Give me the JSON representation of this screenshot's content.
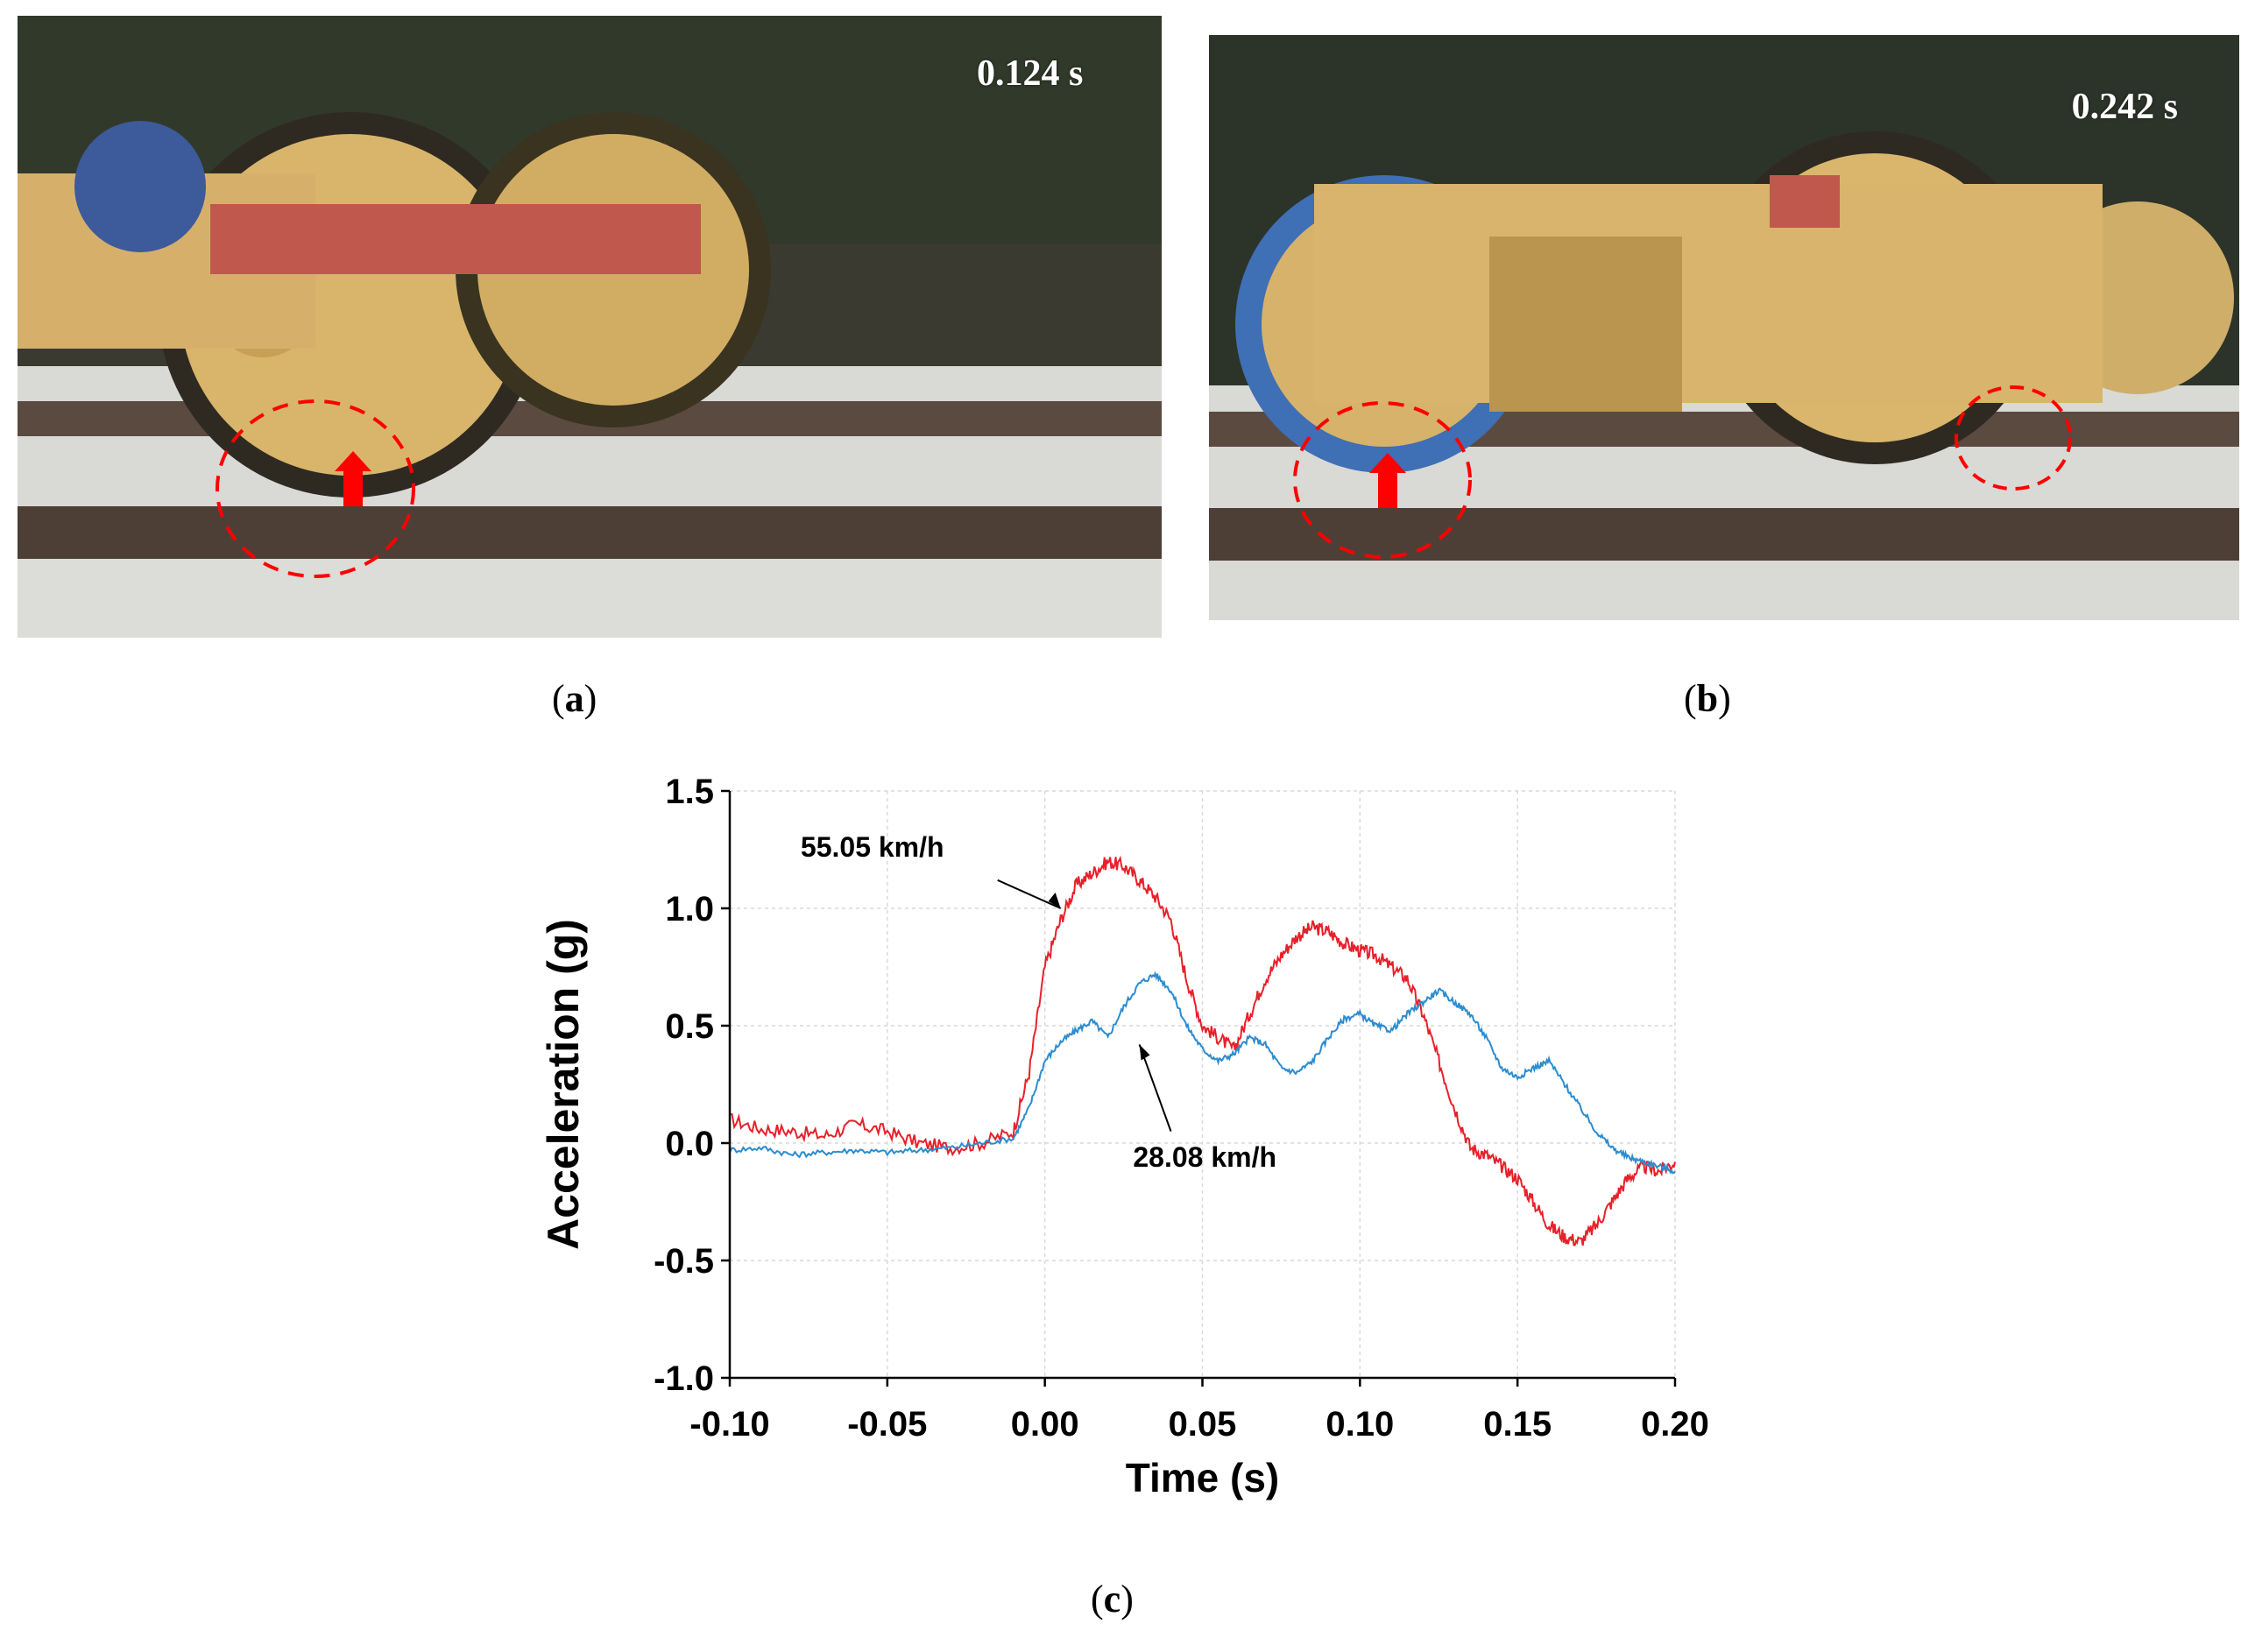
{
  "panels": {
    "a": {
      "label": "a",
      "timestamp": "0.124 s"
    },
    "b": {
      "label": "b",
      "timestamp": "0.242 s"
    },
    "c": {
      "label": "c"
    }
  },
  "colors": {
    "red_series": "#e8202a",
    "blue_series": "#2b8cd0",
    "marker": "#ff0000"
  },
  "chart_data": {
    "type": "line",
    "xlabel": "Time (s)",
    "ylabel": "Acceleration (g)",
    "xlim": [
      -0.1,
      0.2
    ],
    "ylim": [
      -1.0,
      1.5
    ],
    "x_ticks": [
      "-0.10",
      "-0.05",
      "0.00",
      "0.05",
      "0.10",
      "0.15",
      "0.20"
    ],
    "y_ticks": [
      "1.5",
      "1.0",
      "0.5",
      "0.0",
      "-0.5",
      "-1.0"
    ],
    "grid": true,
    "series": [
      {
        "name": "55.05 km/h",
        "color": "#e8202a",
        "x": [
          -0.1,
          -0.09,
          -0.08,
          -0.07,
          -0.06,
          -0.05,
          -0.04,
          -0.03,
          -0.02,
          -0.01,
          -0.005,
          0.0,
          0.005,
          0.01,
          0.015,
          0.02,
          0.025,
          0.03,
          0.035,
          0.04,
          0.045,
          0.05,
          0.055,
          0.06,
          0.065,
          0.07,
          0.075,
          0.08,
          0.085,
          0.09,
          0.095,
          0.1,
          0.105,
          0.11,
          0.115,
          0.12,
          0.125,
          0.13,
          0.135,
          0.14,
          0.145,
          0.15,
          0.155,
          0.16,
          0.165,
          0.17,
          0.175,
          0.18,
          0.185,
          0.19,
          0.195,
          0.2
        ],
        "y": [
          0.1,
          0.06,
          0.05,
          0.03,
          0.08,
          0.05,
          0.0,
          -0.02,
          0.0,
          0.05,
          0.3,
          0.75,
          0.95,
          1.1,
          1.15,
          1.2,
          1.18,
          1.12,
          1.05,
          0.95,
          0.7,
          0.5,
          0.45,
          0.4,
          0.55,
          0.7,
          0.8,
          0.88,
          0.92,
          0.9,
          0.85,
          0.82,
          0.8,
          0.75,
          0.7,
          0.55,
          0.35,
          0.15,
          -0.02,
          -0.05,
          -0.1,
          -0.15,
          -0.25,
          -0.35,
          -0.4,
          -0.42,
          -0.35,
          -0.25,
          -0.15,
          -0.1,
          -0.12,
          -0.08
        ]
      },
      {
        "name": "28.08 km/h",
        "color": "#2b8cd0",
        "x": [
          -0.1,
          -0.09,
          -0.08,
          -0.07,
          -0.06,
          -0.05,
          -0.04,
          -0.03,
          -0.02,
          -0.01,
          -0.005,
          0.0,
          0.005,
          0.01,
          0.015,
          0.02,
          0.025,
          0.03,
          0.035,
          0.04,
          0.045,
          0.05,
          0.055,
          0.06,
          0.065,
          0.07,
          0.075,
          0.08,
          0.085,
          0.09,
          0.095,
          0.1,
          0.105,
          0.11,
          0.115,
          0.12,
          0.125,
          0.13,
          0.135,
          0.14,
          0.145,
          0.15,
          0.155,
          0.16,
          0.165,
          0.17,
          0.175,
          0.18,
          0.185,
          0.19,
          0.195,
          0.2
        ],
        "y": [
          -0.03,
          -0.02,
          -0.05,
          -0.04,
          -0.03,
          -0.04,
          -0.03,
          -0.02,
          0.0,
          0.02,
          0.15,
          0.35,
          0.43,
          0.48,
          0.52,
          0.45,
          0.58,
          0.68,
          0.72,
          0.65,
          0.5,
          0.4,
          0.35,
          0.38,
          0.45,
          0.42,
          0.32,
          0.3,
          0.35,
          0.45,
          0.53,
          0.55,
          0.5,
          0.48,
          0.55,
          0.6,
          0.65,
          0.6,
          0.55,
          0.45,
          0.32,
          0.28,
          0.32,
          0.35,
          0.25,
          0.15,
          0.05,
          -0.02,
          -0.06,
          -0.08,
          -0.1,
          -0.12
        ]
      }
    ],
    "annotations": [
      {
        "text": "55.05 km/h",
        "x": 0.005,
        "y": 1.0
      },
      {
        "text": "28.08 km/h",
        "x": 0.03,
        "y": 0.42
      }
    ]
  }
}
